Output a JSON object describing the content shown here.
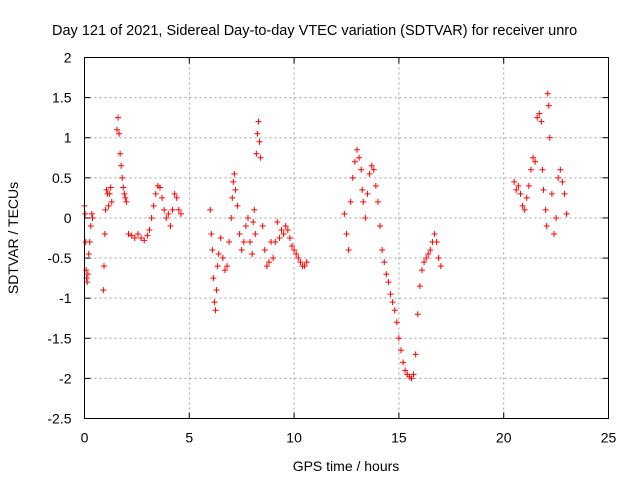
{
  "chart_data": {
    "type": "scatter",
    "title": "Day 121 of 2021, Sidereal Day-to-day VTEC variation (SDTVAR) for receiver unro",
    "xlabel": "GPS time / hours",
    "ylabel": "SDTVAR / TECUs",
    "xlim": [
      0,
      25
    ],
    "ylim": [
      -2.5,
      2
    ],
    "xticks": [
      0,
      5,
      10,
      15,
      20,
      25
    ],
    "xtick_labels": [
      "0",
      "5",
      "10",
      "15",
      "20",
      "25"
    ],
    "yticks": [
      2,
      1.5,
      1,
      0.5,
      0,
      -0.5,
      -1,
      -1.5,
      -2,
      -2.5
    ],
    "ytick_labels": [
      "2",
      "1.5",
      "1",
      "0.5",
      "0",
      "-0.5",
      "-1",
      "-1.5",
      "-2",
      "-2.5"
    ],
    "grid": true,
    "marker": "plus",
    "color": "#ff0000",
    "series": [
      {
        "name": "seg-a",
        "points": [
          [
            0.0,
            0.15
          ],
          [
            0.03,
            0.05
          ],
          [
            0.06,
            -0.3
          ],
          [
            0.08,
            -0.65
          ],
          [
            0.1,
            -0.75
          ],
          [
            0.13,
            -0.8
          ],
          [
            0.16,
            -0.7
          ],
          [
            0.2,
            -0.45
          ],
          [
            0.25,
            -0.3
          ],
          [
            0.3,
            -0.1
          ],
          [
            0.35,
            0.05
          ],
          [
            0.38,
            0.0
          ]
        ]
      },
      {
        "name": "seg-b",
        "points": [
          [
            0.9,
            -0.9
          ],
          [
            0.93,
            -0.6
          ],
          [
            0.97,
            -0.2
          ],
          [
            1.0,
            0.1
          ],
          [
            1.05,
            0.35
          ],
          [
            1.1,
            0.3
          ],
          [
            1.15,
            0.15
          ],
          [
            1.2,
            0.3
          ],
          [
            1.25,
            0.38
          ],
          [
            1.3,
            0.2
          ]
        ]
      },
      {
        "name": "seg-c",
        "points": [
          [
            1.55,
            1.1
          ],
          [
            1.6,
            1.25
          ],
          [
            1.65,
            1.05
          ],
          [
            1.7,
            0.8
          ],
          [
            1.75,
            0.65
          ],
          [
            1.8,
            0.5
          ],
          [
            1.85,
            0.38
          ],
          [
            1.9,
            0.3
          ],
          [
            1.95,
            0.25
          ],
          [
            2.0,
            0.2
          ]
        ]
      },
      {
        "name": "seg-d",
        "points": [
          [
            2.1,
            -0.2
          ],
          [
            2.25,
            -0.22
          ],
          [
            2.4,
            -0.25
          ],
          [
            2.55,
            -0.2
          ],
          [
            2.7,
            -0.25
          ],
          [
            2.85,
            -0.28
          ],
          [
            3.0,
            -0.22
          ],
          [
            3.1,
            -0.15
          ],
          [
            3.2,
            0.0
          ],
          [
            3.3,
            0.15
          ],
          [
            3.4,
            0.3
          ],
          [
            3.5,
            0.4
          ],
          [
            3.6,
            0.38
          ],
          [
            3.7,
            0.25
          ],
          [
            3.8,
            0.1
          ],
          [
            3.9,
            0.0
          ],
          [
            4.0,
            0.05
          ],
          [
            4.1,
            -0.1
          ],
          [
            4.2,
            0.1
          ],
          [
            4.3,
            0.3
          ],
          [
            4.4,
            0.25
          ],
          [
            4.5,
            0.1
          ],
          [
            4.6,
            0.05
          ]
        ]
      },
      {
        "name": "seg-e",
        "points": [
          [
            6.0,
            0.1
          ],
          [
            6.05,
            -0.2
          ],
          [
            6.1,
            -0.4
          ],
          [
            6.15,
            -0.75
          ],
          [
            6.2,
            -1.05
          ],
          [
            6.25,
            -1.15
          ],
          [
            6.3,
            -0.9
          ],
          [
            6.35,
            -0.6
          ],
          [
            6.4,
            -0.45
          ],
          [
            6.5,
            -0.25
          ],
          [
            6.6,
            -0.5
          ],
          [
            6.7,
            -0.65
          ],
          [
            6.8,
            -0.6
          ],
          [
            6.9,
            -0.3
          ],
          [
            7.0,
            0.0
          ],
          [
            7.05,
            0.25
          ],
          [
            7.1,
            0.45
          ],
          [
            7.15,
            0.55
          ],
          [
            7.2,
            0.35
          ],
          [
            7.3,
            0.15
          ],
          [
            7.4,
            -0.2
          ],
          [
            7.5,
            -0.4
          ],
          [
            7.6,
            -0.3
          ],
          [
            7.7,
            -0.1
          ],
          [
            7.8,
            0.0
          ],
          [
            7.9,
            -0.3
          ],
          [
            8.0,
            -0.45
          ],
          [
            8.05,
            -0.05
          ],
          [
            8.1,
            0.1
          ],
          [
            8.15,
            -0.2
          ],
          [
            8.2,
            0.8
          ],
          [
            8.25,
            1.05
          ],
          [
            8.3,
            1.2
          ],
          [
            8.35,
            0.95
          ],
          [
            8.4,
            0.75
          ],
          [
            8.5,
            -0.1
          ],
          [
            8.6,
            -0.4
          ],
          [
            8.7,
            -0.6
          ],
          [
            8.8,
            -0.55
          ],
          [
            8.9,
            -0.3
          ],
          [
            9.0,
            -0.5
          ],
          [
            9.1,
            -0.3
          ],
          [
            9.2,
            -0.05
          ],
          [
            9.3,
            -0.25
          ],
          [
            9.4,
            -0.15
          ],
          [
            9.5,
            -0.2
          ],
          [
            9.6,
            -0.1
          ],
          [
            9.7,
            -0.15
          ],
          [
            9.8,
            -0.25
          ],
          [
            9.9,
            -0.35
          ],
          [
            10.0,
            -0.4
          ],
          [
            10.1,
            -0.45
          ],
          [
            10.2,
            -0.5
          ],
          [
            10.3,
            -0.55
          ],
          [
            10.4,
            -0.6
          ],
          [
            10.5,
            -0.6
          ],
          [
            10.6,
            -0.55
          ]
        ]
      },
      {
        "name": "seg-f",
        "points": [
          [
            12.4,
            0.05
          ],
          [
            12.5,
            -0.2
          ],
          [
            12.6,
            -0.4
          ],
          [
            12.7,
            0.2
          ],
          [
            12.8,
            0.5
          ],
          [
            12.9,
            0.7
          ],
          [
            13.0,
            0.85
          ],
          [
            13.1,
            0.75
          ],
          [
            13.2,
            0.6
          ],
          [
            13.25,
            0.35
          ],
          [
            13.3,
            0.2
          ],
          [
            13.4,
            0.0
          ],
          [
            13.5,
            0.3
          ],
          [
            13.6,
            0.55
          ],
          [
            13.7,
            0.65
          ],
          [
            13.8,
            0.6
          ],
          [
            13.9,
            0.4
          ],
          [
            14.0,
            0.2
          ],
          [
            14.1,
            -0.1
          ],
          [
            14.2,
            -0.4
          ],
          [
            14.3,
            -0.55
          ],
          [
            14.4,
            -0.7
          ],
          [
            14.5,
            -0.8
          ],
          [
            14.6,
            -0.95
          ],
          [
            14.7,
            -1.05
          ],
          [
            14.8,
            -1.15
          ],
          [
            14.9,
            -1.3
          ],
          [
            15.0,
            -1.5
          ],
          [
            15.1,
            -1.65
          ],
          [
            15.2,
            -1.8
          ],
          [
            15.3,
            -1.9
          ],
          [
            15.4,
            -1.95
          ],
          [
            15.5,
            -1.98
          ],
          [
            15.6,
            -2.0
          ],
          [
            15.7,
            -1.95
          ],
          [
            15.8,
            -1.7
          ],
          [
            15.9,
            -1.2
          ],
          [
            16.0,
            -0.85
          ],
          [
            16.1,
            -0.65
          ],
          [
            16.2,
            -0.55
          ],
          [
            16.3,
            -0.5
          ],
          [
            16.4,
            -0.45
          ],
          [
            16.5,
            -0.4
          ],
          [
            16.6,
            -0.3
          ],
          [
            16.7,
            -0.2
          ],
          [
            16.8,
            -0.3
          ],
          [
            16.9,
            -0.5
          ],
          [
            17.0,
            -0.6
          ]
        ]
      },
      {
        "name": "seg-g",
        "points": [
          [
            20.5,
            0.45
          ],
          [
            20.6,
            0.35
          ],
          [
            20.7,
            0.4
          ],
          [
            20.8,
            0.3
          ],
          [
            20.9,
            0.15
          ],
          [
            21.0,
            0.1
          ],
          [
            21.1,
            0.25
          ],
          [
            21.2,
            0.4
          ],
          [
            21.3,
            0.6
          ],
          [
            21.4,
            0.75
          ],
          [
            21.5,
            0.7
          ],
          [
            21.6,
            1.25
          ],
          [
            21.7,
            1.3
          ],
          [
            21.8,
            1.2
          ],
          [
            21.85,
            0.6
          ],
          [
            21.9,
            0.35
          ],
          [
            22.0,
            0.1
          ],
          [
            22.05,
            -0.1
          ],
          [
            22.1,
            1.55
          ],
          [
            22.15,
            1.4
          ],
          [
            22.2,
            1.0
          ],
          [
            22.3,
            0.3
          ],
          [
            22.4,
            -0.2
          ],
          [
            22.5,
            0.0
          ],
          [
            22.6,
            0.5
          ],
          [
            22.7,
            0.6
          ],
          [
            22.8,
            0.45
          ],
          [
            22.9,
            0.3
          ],
          [
            23.0,
            0.05
          ]
        ]
      }
    ]
  }
}
